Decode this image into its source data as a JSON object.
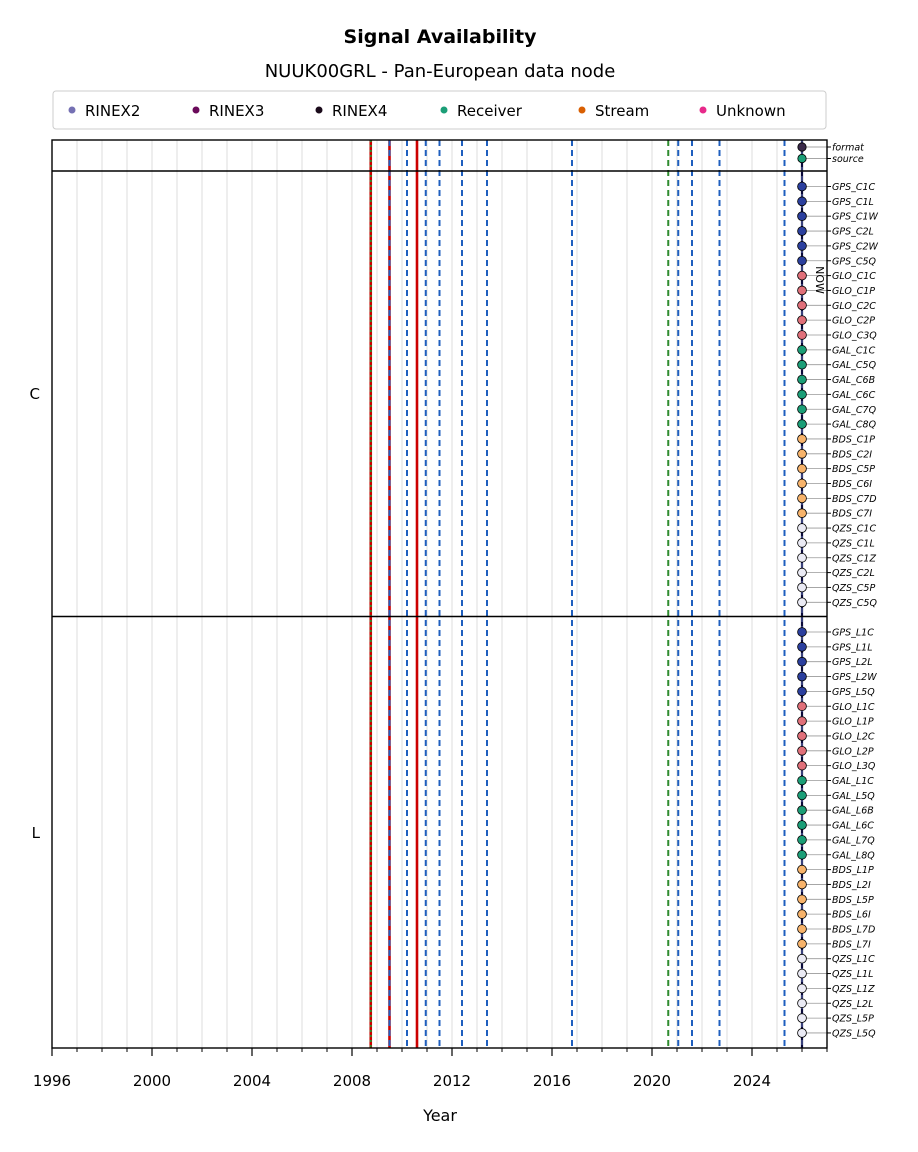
{
  "chart_data": {
    "type": "timeline",
    "title": "Signal Availability",
    "subtitle": "NUUK00GRL - Pan-European data node",
    "xlabel": "Year",
    "xlim": [
      1996,
      2027
    ],
    "x_ticks": [
      1996,
      2000,
      2004,
      2008,
      2012,
      2016,
      2020,
      2024
    ],
    "now_label": "NOW",
    "now_x": 2026.0,
    "legend": [
      {
        "label": "RINEX2",
        "color": "#7570b3"
      },
      {
        "label": "RINEX3",
        "color": "#6a0a5a"
      },
      {
        "label": "RINEX4",
        "color": "#1a0a1a"
      },
      {
        "label": "Receiver",
        "color": "#1b9e77"
      },
      {
        "label": "Stream",
        "color": "#d95f02"
      },
      {
        "label": "Unknown",
        "color": "#e7298a"
      }
    ],
    "meta_rows": [
      {
        "label": "format",
        "color": "#3a2a4a"
      },
      {
        "label": "source",
        "color": "#1b9e77"
      }
    ],
    "groups": [
      {
        "label": "C",
        "signals": [
          "GPS_C1C",
          "GPS_C1L",
          "GPS_C1W",
          "GPS_C2L",
          "GPS_C2W",
          "GPS_C5Q",
          "GLO_C1C",
          "GLO_C1P",
          "GLO_C2C",
          "GLO_C2P",
          "GLO_C3Q",
          "GAL_C1C",
          "GAL_C5Q",
          "GAL_C6B",
          "GAL_C6C",
          "GAL_C7Q",
          "GAL_C8Q",
          "BDS_C1P",
          "BDS_C2I",
          "BDS_C5P",
          "BDS_C6I",
          "BDS_C7D",
          "BDS_C7I",
          "QZS_C1C",
          "QZS_C1L",
          "QZS_C1Z",
          "QZS_C2L",
          "QZS_C5P",
          "QZS_C5Q"
        ]
      },
      {
        "label": "L",
        "signals": [
          "GPS_L1C",
          "GPS_L1L",
          "GPS_L2L",
          "GPS_L2W",
          "GPS_L5Q",
          "GLO_L1C",
          "GLO_L1P",
          "GLO_L2C",
          "GLO_L2P",
          "GLO_L3Q",
          "GAL_L1C",
          "GAL_L5Q",
          "GAL_L6B",
          "GAL_L6C",
          "GAL_L7Q",
          "GAL_L8Q",
          "BDS_L1P",
          "BDS_L2I",
          "BDS_L5P",
          "BDS_L6I",
          "BDS_L7D",
          "BDS_L7I",
          "QZS_L1C",
          "QZS_L1L",
          "QZS_L1Z",
          "QZS_L2L",
          "QZS_L5P",
          "QZS_L5Q"
        ]
      }
    ],
    "constellation_colors": {
      "GPS": "#2b3f9e",
      "GLO": "#e0707a",
      "GAL": "#1b9e77",
      "BDS": "#f7b36b",
      "QZS": "#eaeaf4"
    },
    "signal_points_x": 2026.0,
    "event_lines": [
      {
        "x": 2008.75,
        "color": "#cc0000",
        "style": "solid"
      },
      {
        "x": 2008.75,
        "color": "#2e8b2e",
        "style": "dotted"
      },
      {
        "x": 2009.5,
        "color": "#cc0000",
        "style": "solid"
      },
      {
        "x": 2009.5,
        "color": "#1f5fbf",
        "style": "dashed"
      },
      {
        "x": 2010.2,
        "color": "#1f5fbf",
        "style": "dashed"
      },
      {
        "x": 2010.6,
        "color": "#cc0000",
        "style": "solid"
      },
      {
        "x": 2010.95,
        "color": "#1f5fbf",
        "style": "dashed"
      },
      {
        "x": 2011.5,
        "color": "#1f5fbf",
        "style": "dashed"
      },
      {
        "x": 2012.4,
        "color": "#1f5fbf",
        "style": "dashed"
      },
      {
        "x": 2013.4,
        "color": "#1f5fbf",
        "style": "dashed"
      },
      {
        "x": 2016.8,
        "color": "#1f5fbf",
        "style": "dashed"
      },
      {
        "x": 2020.65,
        "color": "#2e8b2e",
        "style": "dashed"
      },
      {
        "x": 2021.05,
        "color": "#1f5fbf",
        "style": "dashed"
      },
      {
        "x": 2021.6,
        "color": "#1f5fbf",
        "style": "dashed"
      },
      {
        "x": 2022.7,
        "color": "#1f5fbf",
        "style": "dashed"
      },
      {
        "x": 2025.3,
        "color": "#1f5fbf",
        "style": "dashed"
      }
    ],
    "grid": true
  }
}
